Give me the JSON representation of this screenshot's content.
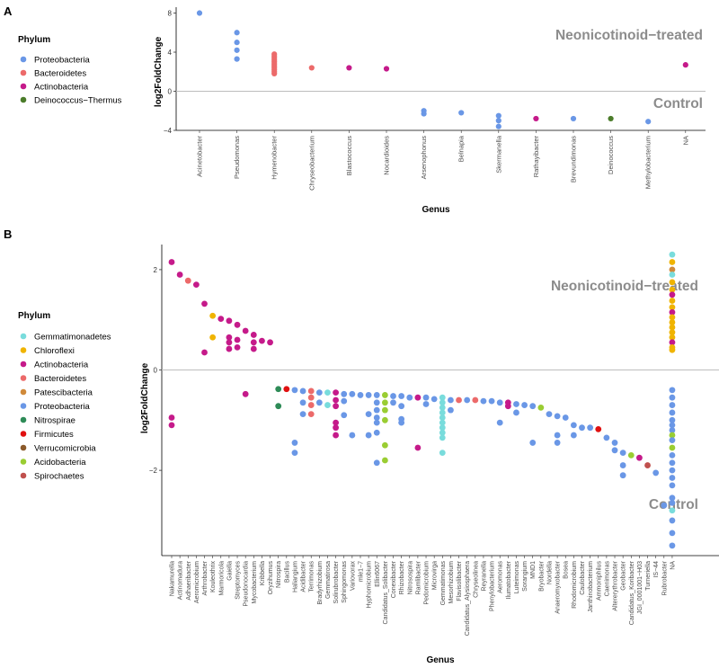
{
  "chart_data": [
    {
      "panel": "A",
      "type": "scatter",
      "xlabel": "Genus",
      "ylabel": "log2FoldChange",
      "ylim": [
        -4,
        8.6
      ],
      "yticks": [
        -4,
        0,
        4,
        8
      ],
      "legend_title": "Phylum",
      "legend": [
        {
          "name": "Proteobacteria",
          "color": "#6a97e6"
        },
        {
          "name": "Bacteroidetes",
          "color": "#ec6a6a"
        },
        {
          "name": "Actinobacteria",
          "color": "#c51a8a"
        },
        {
          "name": "Deinococcus−Thermus",
          "color": "#4b7c2a"
        }
      ],
      "annotations": {
        "upper": "Neonicotinoid−treated",
        "lower": "Control"
      },
      "categories": [
        "Acinetobacter",
        "Pseudomonas",
        "Hymenobacter",
        "Chryseobacterium",
        "Blastococcus",
        "Nocardioides",
        "Arsenophonus",
        "Belnapia",
        "Skermanella",
        "Rathayibacter",
        "Brevundimonas",
        "Deinococcus",
        "Methylobacterium",
        "NA"
      ],
      "points": [
        {
          "genus": "Acinetobacter",
          "phylum": "Proteobacteria",
          "values": [
            8.0
          ]
        },
        {
          "genus": "Pseudomonas",
          "phylum": "Proteobacteria",
          "values": [
            6.0,
            5.0,
            4.2,
            3.3
          ]
        },
        {
          "genus": "Hymenobacter",
          "phylum": "Bacteroidetes",
          "values": [
            3.8,
            3.6,
            3.4,
            3.2,
            3.0,
            2.8,
            2.6,
            2.4,
            2.2,
            2.0,
            1.8
          ]
        },
        {
          "genus": "Chryseobacterium",
          "phylum": "Bacteroidetes",
          "values": [
            2.4
          ]
        },
        {
          "genus": "Blastococcus",
          "phylum": "Actinobacteria",
          "values": [
            2.4
          ]
        },
        {
          "genus": "Nocardioides",
          "phylum": "Actinobacteria",
          "values": [
            2.3
          ]
        },
        {
          "genus": "Arsenophonus",
          "phylum": "Proteobacteria",
          "values": [
            -2.0,
            -2.3
          ]
        },
        {
          "genus": "Belnapia",
          "phylum": "Proteobacteria",
          "values": [
            -2.2
          ]
        },
        {
          "genus": "Skermanella",
          "phylum": "Proteobacteria",
          "values": [
            -2.5,
            -3.0,
            -3.6
          ]
        },
        {
          "genus": "Rathayibacter",
          "phylum": "Actinobacteria",
          "values": [
            -2.8
          ]
        },
        {
          "genus": "Brevundimonas",
          "phylum": "Proteobacteria",
          "values": [
            -2.8
          ]
        },
        {
          "genus": "Deinococcus",
          "phylum": "Deinococcus−Thermus",
          "values": [
            -2.8
          ]
        },
        {
          "genus": "Methylobacterium",
          "phylum": "Proteobacteria",
          "values": [
            -3.1
          ]
        },
        {
          "genus": "NA",
          "phylum": "Actinobacteria",
          "values": [
            2.7
          ]
        }
      ]
    },
    {
      "panel": "B",
      "type": "scatter",
      "xlabel": "Genus",
      "ylabel": "log2FoldChange",
      "ylim": [
        -3.7,
        2.5
      ],
      "yticks": [
        -2,
        0,
        2
      ],
      "legend_title": "Phylum",
      "legend": [
        {
          "name": "Gemmatimonadetes",
          "color": "#79dcdc"
        },
        {
          "name": "Chloroflexi",
          "color": "#f0b400"
        },
        {
          "name": "Actinobacteria",
          "color": "#c51a8a"
        },
        {
          "name": "Bacteroidetes",
          "color": "#ec6a6a"
        },
        {
          "name": "Patescibacteria",
          "color": "#d08a3a"
        },
        {
          "name": "Proteobacteria",
          "color": "#6a97e6"
        },
        {
          "name": "Nitrospirae",
          "color": "#2e8b57"
        },
        {
          "name": "Firmicutes",
          "color": "#e01010"
        },
        {
          "name": "Verrucomicrobia",
          "color": "#8b5a2b"
        },
        {
          "name": "Acidobacteria",
          "color": "#9acd32"
        },
        {
          "name": "Spirochaetes",
          "color": "#c0504d"
        }
      ],
      "annotations": {
        "upper": "Neonicotinoid−treated",
        "lower": "Control"
      },
      "categories": [
        "Nakamurella",
        "Actinomadura",
        "Adhaeribacter",
        "Aeromicrobium",
        "Arthrobacter",
        "Kouleothrix",
        "Marmoricola",
        "Gaiella",
        "Streptomyces",
        "Pseudonocardia",
        "Mycobacterium",
        "Kribbella",
        "Oryzihumus",
        "Nitrospira",
        "Bacillus",
        "Haliangium",
        "Acidibacter",
        "Terrimonas",
        "Bradyrhizobium",
        "Gemmatirosa",
        "Solirubrobacter",
        "Sphingomonas",
        "Variovorax",
        "mle1−7",
        "Hyphomicrobium",
        "Ellin6067",
        "Candidatus_Solibacter",
        "Conexibacter",
        "Rhizobacter",
        "Nitrosospira",
        "Ramlibacter",
        "Pedomicrobium",
        "Microvirga",
        "Gemmatimonas",
        "Mesorhizobium",
        "Flavisolibacter",
        "Candidatus_Alysiosphaera",
        "Chryseolinea",
        "Reyranella",
        "Phenylobacterium",
        "Aeromonas",
        "Ilumatobacter",
        "Luteimonas",
        "Sorangium",
        "MND1",
        "Bryobacter",
        "Nordella",
        "Anaeromyxobacter",
        "Bosea",
        "Rhodomicrobium",
        "Caulobacter",
        "Janthinobacterium",
        "Ammoniphilus",
        "Caenimonas",
        "Altererythrobacter",
        "Geobacter",
        "Candidatus_Koribacter",
        "JGI_0001001−H03",
        "Turneriella",
        "IS−44",
        "Rubrobacter",
        "NA"
      ],
      "points": [
        {
          "genus": "Nakamurella",
          "phylum": "Actinobacteria",
          "values": [
            2.15,
            -0.95,
            -1.1
          ]
        },
        {
          "genus": "Actinomadura",
          "phylum": "Actinobacteria",
          "values": [
            1.9
          ]
        },
        {
          "genus": "Adhaeribacter",
          "phylum": "Bacteroidetes",
          "values": [
            1.78
          ]
        },
        {
          "genus": "Aeromicrobium",
          "phylum": "Actinobacteria",
          "values": [
            1.7
          ]
        },
        {
          "genus": "Arthrobacter",
          "phylum": "Actinobacteria",
          "values": [
            1.32,
            0.35
          ]
        },
        {
          "genus": "Kouleothrix",
          "phylum": "Chloroflexi",
          "values": [
            1.08,
            0.65
          ]
        },
        {
          "genus": "Marmoricola",
          "phylum": "Actinobacteria",
          "values": [
            1.02
          ]
        },
        {
          "genus": "Gaiella",
          "phylum": "Actinobacteria",
          "values": [
            0.98,
            0.65,
            0.55,
            0.42
          ]
        },
        {
          "genus": "Streptomyces",
          "phylum": "Actinobacteria",
          "values": [
            0.9,
            0.6,
            0.45
          ]
        },
        {
          "genus": "Pseudonocardia",
          "phylum": "Actinobacteria",
          "values": [
            0.78,
            -0.48
          ]
        },
        {
          "genus": "Mycobacterium",
          "phylum": "Actinobacteria",
          "values": [
            0.7,
            0.55,
            0.42
          ]
        },
        {
          "genus": "Kribbella",
          "phylum": "Actinobacteria",
          "values": [
            0.58
          ]
        },
        {
          "genus": "Oryzihumus",
          "phylum": "Actinobacteria",
          "values": [
            0.55
          ]
        },
        {
          "genus": "Nitrospira",
          "phylum": "Nitrospirae",
          "values": [
            -0.38,
            -0.72
          ]
        },
        {
          "genus": "Bacillus",
          "phylum": "Firmicutes",
          "values": [
            -0.38
          ]
        },
        {
          "genus": "Haliangium",
          "phylum": "Proteobacteria",
          "values": [
            -0.4,
            -1.45,
            -1.65
          ]
        },
        {
          "genus": "Acidibacter",
          "phylum": "Proteobacteria",
          "values": [
            -0.42,
            -0.65,
            -0.88
          ]
        },
        {
          "genus": "Terrimonas",
          "phylum": "Bacteroidetes",
          "values": [
            -0.42,
            -0.55,
            -0.7,
            -0.88
          ]
        },
        {
          "genus": "Bradyrhizobium",
          "phylum": "Proteobacteria",
          "values": [
            -0.45,
            -0.65
          ]
        },
        {
          "genus": "Gemmatirosa",
          "phylum": "Gemmatimonadetes",
          "values": [
            -0.45,
            -0.7
          ]
        },
        {
          "genus": "Solirubrobacter",
          "phylum": "Actinobacteria",
          "values": [
            -0.45,
            -0.6,
            -0.72,
            -1.05,
            -1.15,
            -1.3
          ]
        },
        {
          "genus": "Sphingomonas",
          "phylum": "Proteobacteria",
          "values": [
            -0.48,
            -0.62,
            -0.9
          ]
        },
        {
          "genus": "Variovorax",
          "phylum": "Proteobacteria",
          "values": [
            -0.48,
            -1.3
          ]
        },
        {
          "genus": "mle1−7",
          "phylum": "Proteobacteria",
          "values": [
            -0.5
          ]
        },
        {
          "genus": "Hyphomicrobium",
          "phylum": "Proteobacteria",
          "values": [
            -0.5,
            -0.88,
            -1.3
          ]
        },
        {
          "genus": "Ellin6067",
          "phylum": "Proteobacteria",
          "values": [
            -0.5,
            -0.65,
            -0.8,
            -0.95,
            -1.05,
            -1.25,
            -1.85
          ]
        },
        {
          "genus": "Candidatus_Solibacter",
          "phylum": "Acidobacteria",
          "values": [
            -0.5,
            -0.65,
            -0.8,
            -1.0,
            -1.5,
            -1.8
          ]
        },
        {
          "genus": "Conexibacter",
          "phylum": "Proteobacteria",
          "values": [
            -0.52,
            -0.65
          ]
        },
        {
          "genus": "Rhizobacter",
          "phylum": "Proteobacteria",
          "values": [
            -0.52,
            -0.72,
            -0.98,
            -1.05
          ]
        },
        {
          "genus": "Nitrosospira",
          "phylum": "Proteobacteria",
          "values": [
            -0.55
          ]
        },
        {
          "genus": "Ramlibacter",
          "phylum": "Actinobacteria",
          "values": [
            -0.55,
            -1.55
          ]
        },
        {
          "genus": "Pedomicrobium",
          "phylum": "Proteobacteria",
          "values": [
            -0.55,
            -0.68
          ]
        },
        {
          "genus": "Microvirga",
          "phylum": "Proteobacteria",
          "values": [
            -0.58
          ]
        },
        {
          "genus": "Gemmatimonas",
          "phylum": "Gemmatimonadetes",
          "values": [
            -0.55,
            -0.65,
            -0.75,
            -0.85,
            -0.95,
            -1.05,
            -1.15,
            -1.25,
            -1.35,
            -1.65
          ]
        },
        {
          "genus": "Mesorhizobium",
          "phylum": "Proteobacteria",
          "values": [
            -0.6,
            -0.8
          ]
        },
        {
          "genus": "Flavisolibacter",
          "phylum": "Bacteroidetes",
          "values": [
            -0.6
          ]
        },
        {
          "genus": "Candidatus_Alysiosphaera",
          "phylum": "Proteobacteria",
          "values": [
            -0.6
          ]
        },
        {
          "genus": "Chryseolinea",
          "phylum": "Bacteroidetes",
          "values": [
            -0.6
          ]
        },
        {
          "genus": "Reyranella",
          "phylum": "Proteobacteria",
          "values": [
            -0.62
          ]
        },
        {
          "genus": "Phenylobacterium",
          "phylum": "Proteobacteria",
          "values": [
            -0.62
          ]
        },
        {
          "genus": "Aeromonas",
          "phylum": "Proteobacteria",
          "values": [
            -0.65,
            -1.05
          ]
        },
        {
          "genus": "Ilumatobacter",
          "phylum": "Actinobacteria",
          "values": [
            -0.65,
            -0.72
          ]
        },
        {
          "genus": "Luteimonas",
          "phylum": "Proteobacteria",
          "values": [
            -0.68,
            -0.85
          ]
        },
        {
          "genus": "Sorangium",
          "phylum": "Proteobacteria",
          "values": [
            -0.7
          ]
        },
        {
          "genus": "MND1",
          "phylum": "Proteobacteria",
          "values": [
            -0.72,
            -1.45
          ]
        },
        {
          "genus": "Bryobacter",
          "phylum": "Acidobacteria",
          "values": [
            -0.75
          ]
        },
        {
          "genus": "Nordella",
          "phylum": "Proteobacteria",
          "values": [
            -0.88
          ]
        },
        {
          "genus": "Anaeromyxobacter",
          "phylum": "Proteobacteria",
          "values": [
            -0.92,
            -1.3,
            -1.45
          ]
        },
        {
          "genus": "Bosea",
          "phylum": "Proteobacteria",
          "values": [
            -0.95
          ]
        },
        {
          "genus": "Rhodomicrobium",
          "phylum": "Proteobacteria",
          "values": [
            -1.1,
            -1.3
          ]
        },
        {
          "genus": "Caulobacter",
          "phylum": "Proteobacteria",
          "values": [
            -1.15
          ]
        },
        {
          "genus": "Janthinobacterium",
          "phylum": "Proteobacteria",
          "values": [
            -1.15
          ]
        },
        {
          "genus": "Ammoniphilus",
          "phylum": "Firmicutes",
          "values": [
            -1.18
          ]
        },
        {
          "genus": "Caenimonas",
          "phylum": "Proteobacteria",
          "values": [
            -1.35
          ]
        },
        {
          "genus": "Altererythrobacter",
          "phylum": "Proteobacteria",
          "values": [
            -1.45,
            -1.6
          ]
        },
        {
          "genus": "Geobacter",
          "phylum": "Proteobacteria",
          "values": [
            -1.65,
            -1.9,
            -2.1
          ]
        },
        {
          "genus": "Candidatus_Koribacter",
          "phylum": "Acidobacteria",
          "values": [
            -1.7
          ]
        },
        {
          "genus": "JGI_0001001−H03",
          "phylum": "Actinobacteria",
          "values": [
            -1.75
          ]
        },
        {
          "genus": "Turneriella",
          "phylum": "Spirochaetes",
          "values": [
            -1.9
          ]
        },
        {
          "genus": "IS−44",
          "phylum": "Proteobacteria",
          "values": [
            -2.05
          ]
        },
        {
          "genus": "Rubrobacter",
          "phylum": "Proteobacteria",
          "values": [
            -2.7
          ]
        },
        {
          "genus": "NA",
          "phylum": "mixed",
          "values": [
            2.3,
            2.15,
            2.0,
            1.9,
            1.75,
            1.6,
            1.5,
            1.38,
            1.25,
            1.15,
            1.05,
            0.95,
            0.85,
            0.75,
            0.65,
            0.55,
            0.45,
            0.4,
            -0.4,
            -0.55,
            -0.7,
            -0.85,
            -1.0,
            -1.1,
            -1.2,
            -1.3,
            -1.4,
            -1.55,
            -1.7,
            -1.85,
            -2.0,
            -2.15,
            -2.3,
            -2.55,
            -2.65,
            -2.8,
            -3.0,
            -3.25,
            -3.5
          ]
        }
      ]
    }
  ]
}
